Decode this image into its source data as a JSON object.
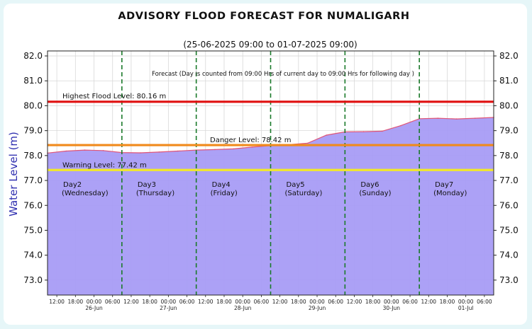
{
  "chart_data": {
    "type": "area",
    "title": "ADVISORY FLOOD FORECAST FOR NUMALIGARH",
    "subtitle": "(25-06-2025 09:00 to 01-07-2025 09:00)",
    "ylabel": "Water Level (m)",
    "xlabel": "",
    "ylim": [
      72.4,
      82.2
    ],
    "yticks": [
      73.0,
      74.0,
      75.0,
      76.0,
      77.0,
      78.0,
      79.0,
      80.0,
      81.0,
      82.0
    ],
    "x_range": [
      "2025-06-25 09:00",
      "2025-07-01 09:00"
    ],
    "xticks": [
      {
        "x": "2025-06-25 12:00",
        "label": "12:00"
      },
      {
        "x": "2025-06-25 18:00",
        "label": "18:00"
      },
      {
        "x": "2025-06-26 00:00",
        "label": "00:00",
        "date": "26-Jun"
      },
      {
        "x": "2025-06-26 06:00",
        "label": "06:00"
      },
      {
        "x": "2025-06-26 12:00",
        "label": "12:00"
      },
      {
        "x": "2025-06-26 18:00",
        "label": "18:00"
      },
      {
        "x": "2025-06-27 00:00",
        "label": "00:00",
        "date": "27-Jun"
      },
      {
        "x": "2025-06-27 06:00",
        "label": "06:00"
      },
      {
        "x": "2025-06-27 12:00",
        "label": "12:00"
      },
      {
        "x": "2025-06-27 18:00",
        "label": "18:00"
      },
      {
        "x": "2025-06-28 00:00",
        "label": "00:00",
        "date": "28-Jun"
      },
      {
        "x": "2025-06-28 06:00",
        "label": "06:00"
      },
      {
        "x": "2025-06-28 12:00",
        "label": "12:00"
      },
      {
        "x": "2025-06-28 18:00",
        "label": "18:00"
      },
      {
        "x": "2025-06-29 00:00",
        "label": "00:00",
        "date": "29-Jun"
      },
      {
        "x": "2025-06-29 06:00",
        "label": "06:00"
      },
      {
        "x": "2025-06-29 12:00",
        "label": "12:00"
      },
      {
        "x": "2025-06-29 18:00",
        "label": "18:00"
      },
      {
        "x": "2025-06-30 00:00",
        "label": "00:00",
        "date": "30-Jun"
      },
      {
        "x": "2025-06-30 06:00",
        "label": "06:00"
      },
      {
        "x": "2025-06-30 12:00",
        "label": "12:00"
      },
      {
        "x": "2025-06-30 18:00",
        "label": "18:00"
      },
      {
        "x": "2025-07-01 00:00",
        "label": "00:00",
        "date": "01-Jul"
      },
      {
        "x": "2025-07-01 06:00",
        "label": "06:00"
      }
    ],
    "series": [
      {
        "color": "#a89cf5",
        "line_color": "#e05577",
        "points": [
          [
            "2025-06-25 09:00",
            78.1
          ],
          [
            "2025-06-25 15:00",
            78.18
          ],
          [
            "2025-06-25 21:00",
            78.22
          ],
          [
            "2025-06-26 03:00",
            78.2
          ],
          [
            "2025-06-26 09:00",
            78.12
          ],
          [
            "2025-06-26 15:00",
            78.11
          ],
          [
            "2025-06-26 21:00",
            78.14
          ],
          [
            "2025-06-27 03:00",
            78.18
          ],
          [
            "2025-06-27 09:00",
            78.22
          ],
          [
            "2025-06-27 15:00",
            78.24
          ],
          [
            "2025-06-27 21:00",
            78.27
          ],
          [
            "2025-06-28 03:00",
            78.34
          ],
          [
            "2025-06-28 09:00",
            78.4
          ],
          [
            "2025-06-28 15:00",
            78.44
          ],
          [
            "2025-06-28 21:00",
            78.5
          ],
          [
            "2025-06-29 03:00",
            78.82
          ],
          [
            "2025-06-29 09:00",
            78.95
          ],
          [
            "2025-06-29 15:00",
            78.96
          ],
          [
            "2025-06-29 21:00",
            78.98
          ],
          [
            "2025-06-30 03:00",
            79.2
          ],
          [
            "2025-06-30 09:00",
            79.48
          ],
          [
            "2025-06-30 15:00",
            79.5
          ],
          [
            "2025-06-30 21:00",
            79.47
          ],
          [
            "2025-07-01 03:00",
            79.5
          ],
          [
            "2025-07-01 09:00",
            79.53
          ]
        ]
      }
    ],
    "thresholds": [
      {
        "label": "Highest Flood Level: 80.16 m",
        "value": 80.16,
        "color": "#e01010"
      },
      {
        "label": "Danger Level: 78.42 m",
        "value": 78.42,
        "color": "#f08a1c"
      },
      {
        "label": "Warning Level: 77.42 m",
        "value": 77.42,
        "color": "#f2e82a"
      }
    ],
    "forecast_note": "Forecast (Day is counted from 09:00 Hrs of current day to 09:00 Hrs for following day )",
    "day_dividers": [
      "2025-06-26 09:00",
      "2025-06-27 09:00",
      "2025-06-28 09:00",
      "2025-06-29 09:00",
      "2025-06-30 09:00"
    ],
    "days": [
      {
        "name": "Day2",
        "weekday": "(Wednesday)"
      },
      {
        "name": "Day3",
        "weekday": "(Thursday)"
      },
      {
        "name": "Day4",
        "weekday": "(Friday)"
      },
      {
        "name": "Day5",
        "weekday": "(Saturday)"
      },
      {
        "name": "Day6",
        "weekday": "(Sunday)"
      },
      {
        "name": "Day7",
        "weekday": "(Monday)"
      }
    ],
    "grid": true,
    "divider_color": "#1a7a2a"
  }
}
